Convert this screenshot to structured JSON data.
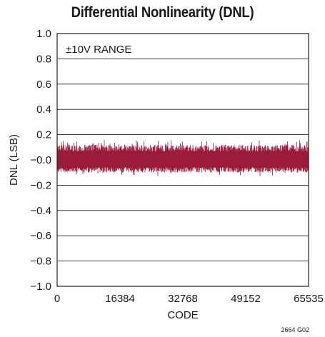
{
  "chart_data": {
    "type": "line",
    "title": "Differential Nonlinearity (DNL)",
    "xlabel": "CODE",
    "ylabel": "DNL (LSB)",
    "xlim": [
      0,
      65535
    ],
    "ylim": [
      -1.0,
      1.0
    ],
    "x_ticks": [
      "0",
      "16384",
      "32768",
      "49152",
      "65535"
    ],
    "x_tick_values": [
      0,
      16384,
      32768,
      49152,
      65535
    ],
    "y_ticks": [
      "1.0",
      "0.8",
      "0.6",
      "0.4",
      "0.2",
      "−0.0",
      "−0.2",
      "−0.4",
      "−0.6",
      "−0.8",
      "−1.0"
    ],
    "y_tick_values": [
      1.0,
      0.8,
      0.6,
      0.4,
      0.2,
      0.0,
      -0.2,
      -0.4,
      -0.6,
      -0.8,
      -1.0
    ],
    "grid": "horizontal",
    "annotation": "±10V RANGE",
    "series": [
      {
        "color": "#9b1b3a",
        "x_range": [
          0,
          65535
        ],
        "typical_y_range": [
          -0.1,
          0.12
        ],
        "peak_y_range": [
          -0.13,
          0.16
        ]
      }
    ]
  },
  "figure_id": "2664 G02"
}
